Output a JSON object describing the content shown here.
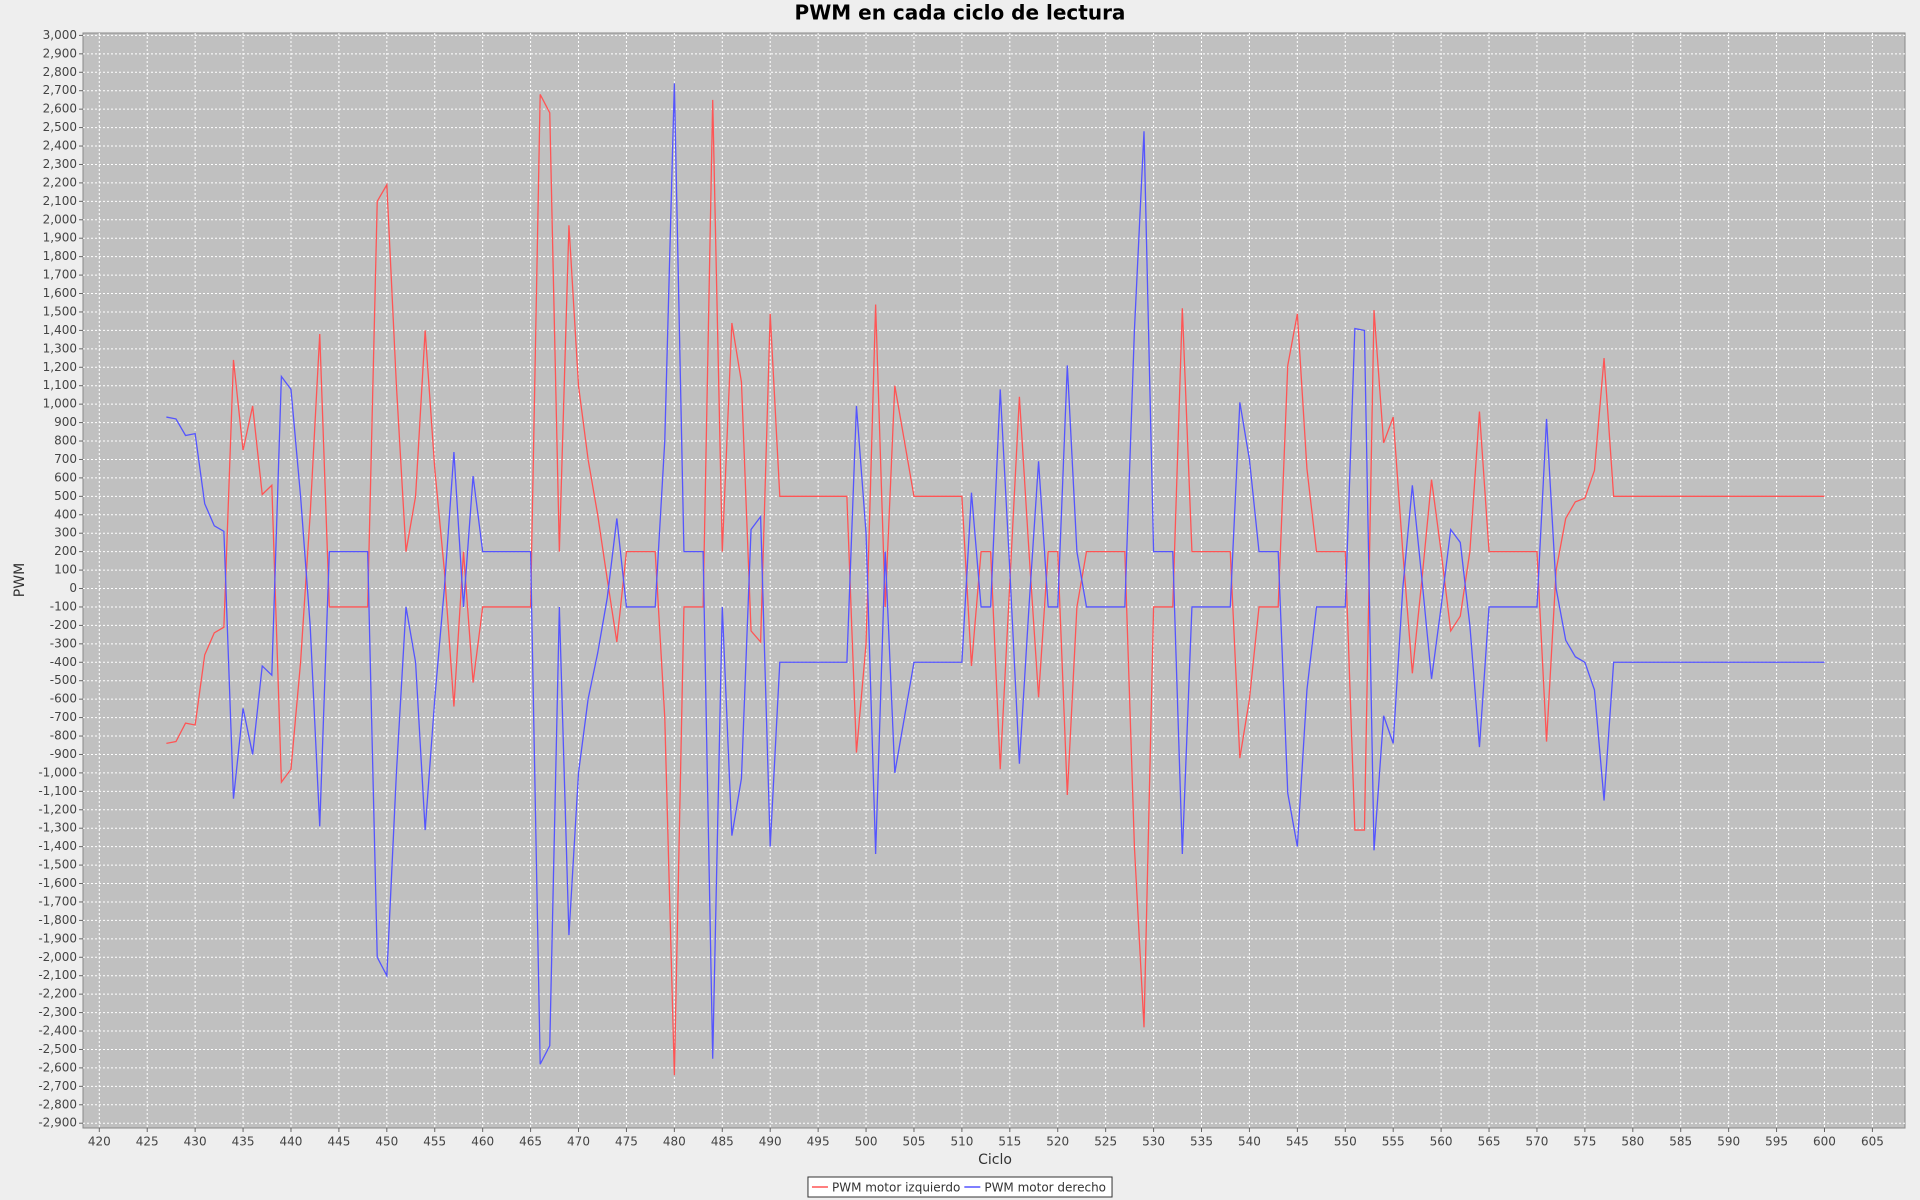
{
  "chart_data": {
    "type": "line",
    "title": "PWM en cada ciclo de lectura",
    "x_label": "Ciclo",
    "y_label": "PWM",
    "x": [
      427,
      428,
      429,
      430,
      431,
      432,
      433,
      434,
      435,
      436,
      437,
      438,
      439,
      440,
      441,
      442,
      443,
      444,
      445,
      446,
      447,
      448,
      449,
      450,
      451,
      452,
      453,
      454,
      455,
      456,
      457,
      458,
      459,
      460,
      461,
      462,
      463,
      464,
      465,
      466,
      467,
      468,
      469,
      470,
      471,
      472,
      473,
      474,
      475,
      476,
      477,
      478,
      479,
      480,
      481,
      482,
      483,
      484,
      485,
      486,
      487,
      488,
      489,
      490,
      491,
      492,
      493,
      494,
      495,
      496,
      497,
      498,
      499,
      500,
      501,
      502,
      503,
      504,
      505,
      506,
      507,
      508,
      509,
      510,
      511,
      512,
      513,
      514,
      515,
      516,
      517,
      518,
      519,
      520,
      521,
      522,
      523,
      524,
      525,
      526,
      527,
      528,
      529,
      530,
      531,
      532,
      533,
      534,
      535,
      536,
      537,
      538,
      539,
      540,
      541,
      542,
      543,
      544,
      545,
      546,
      547,
      548,
      549,
      550,
      551,
      552,
      553,
      554,
      555,
      556,
      557,
      558,
      559,
      560,
      561,
      562,
      563,
      564,
      565,
      566,
      567,
      568,
      569,
      570,
      571,
      572,
      573,
      574,
      575,
      576,
      577,
      578,
      579,
      580,
      581,
      582,
      583,
      584,
      585,
      586,
      587,
      588,
      589,
      590,
      591,
      592,
      593,
      594,
      595,
      596,
      597,
      598,
      599,
      600
    ],
    "series": [
      {
        "name": "PWM motor izquierdo",
        "color": "#ff5555",
        "values": [
          -840,
          -830,
          -730,
          -740,
          -360,
          -240,
          -210,
          1240,
          750,
          990,
          510,
          560,
          -1050,
          -980,
          -400,
          400,
          1380,
          -100,
          -100,
          -100,
          -100,
          -100,
          2100,
          2190,
          1100,
          200,
          500,
          1400,
          650,
          100,
          -640,
          200,
          -510,
          -100,
          -100,
          -100,
          -100,
          -100,
          -100,
          2680,
          2580,
          200,
          1970,
          1100,
          700,
          400,
          50,
          -290,
          200,
          200,
          200,
          200,
          -700,
          -2640,
          -100,
          -100,
          -100,
          2650,
          200,
          1440,
          1120,
          -230,
          -290,
          1490,
          500,
          500,
          500,
          500,
          500,
          500,
          500,
          500,
          -890,
          -300,
          1540,
          -100,
          1100,
          800,
          500,
          500,
          500,
          500,
          500,
          500,
          -420,
          200,
          200,
          -980,
          30,
          1040,
          200,
          -590,
          200,
          200,
          -1120,
          -100,
          200,
          200,
          200,
          200,
          200,
          -1400,
          -2380,
          -100,
          -100,
          -100,
          1520,
          200,
          200,
          200,
          200,
          200,
          -920,
          -600,
          -100,
          -100,
          -100,
          1210,
          1490,
          650,
          200,
          200,
          200,
          200,
          -1310,
          -1310,
          1510,
          790,
          930,
          200,
          -460,
          50,
          590,
          200,
          -230,
          -150,
          200,
          960,
          200,
          200,
          200,
          200,
          200,
          200,
          -830,
          100,
          380,
          470,
          490,
          640,
          1250,
          500,
          500,
          500,
          500,
          500,
          500,
          500,
          500,
          500,
          500,
          500,
          500,
          500,
          500,
          500,
          500,
          500,
          500,
          500,
          500,
          500,
          500,
          500
        ]
      },
      {
        "name": "PWM motor derecho",
        "color": "#5555ff",
        "values": [
          930,
          920,
          830,
          840,
          460,
          340,
          310,
          -1140,
          -650,
          -900,
          -420,
          -470,
          1150,
          1080,
          500,
          -200,
          -1290,
          200,
          200,
          200,
          200,
          200,
          -2000,
          -2100,
          -1000,
          -100,
          -400,
          -1310,
          -600,
          0,
          740,
          -100,
          610,
          200,
          200,
          200,
          200,
          200,
          200,
          -2580,
          -2480,
          -100,
          -1880,
          -1000,
          -600,
          -350,
          -50,
          380,
          -100,
          -100,
          -100,
          -100,
          800,
          2740,
          200,
          200,
          200,
          -2550,
          -100,
          -1340,
          -1030,
          320,
          390,
          -1400,
          -400,
          -400,
          -400,
          -400,
          -400,
          -400,
          -400,
          -400,
          990,
          300,
          -1440,
          200,
          -1000,
          -700,
          -400,
          -400,
          -400,
          -400,
          -400,
          -400,
          520,
          -100,
          -100,
          1080,
          100,
          -950,
          -100,
          690,
          -100,
          -100,
          1210,
          200,
          -100,
          -100,
          -100,
          -100,
          -100,
          1400,
          2480,
          200,
          200,
          200,
          -1440,
          -100,
          -100,
          -100,
          -100,
          -100,
          1010,
          700,
          200,
          200,
          200,
          -1110,
          -1400,
          -550,
          -100,
          -100,
          -100,
          -100,
          1410,
          1400,
          -1420,
          -690,
          -840,
          0,
          560,
          50,
          -490,
          -100,
          320,
          250,
          -200,
          -860,
          -100,
          -100,
          -100,
          -100,
          -100,
          -100,
          920,
          0,
          -280,
          -370,
          -400,
          -550,
          -1150,
          -400,
          -400,
          -400,
          -400,
          -400,
          -400,
          -400,
          -400,
          -400,
          -400,
          -400,
          -400,
          -400,
          -400,
          -400,
          -400,
          -400,
          -400,
          -400,
          -400,
          -400,
          -400,
          -400
        ]
      }
    ],
    "xlim": [
      418.3,
      608.4
    ],
    "ylim": [
      -2926,
      3013
    ],
    "xticks": [
      420,
      425,
      430,
      435,
      440,
      445,
      450,
      455,
      460,
      465,
      470,
      475,
      480,
      485,
      490,
      495,
      500,
      505,
      510,
      515,
      520,
      525,
      530,
      535,
      540,
      545,
      550,
      555,
      560,
      565,
      570,
      575,
      580,
      585,
      590,
      595,
      600,
      605
    ],
    "yticks": [
      {
        "value": -2900,
        "label": "-2,900"
      },
      {
        "value": -2800,
        "label": "-2,800"
      },
      {
        "value": -2700,
        "label": "-2,700"
      },
      {
        "value": -2600,
        "label": "-2,600"
      },
      {
        "value": -2500,
        "label": "-2,500"
      },
      {
        "value": -2400,
        "label": "-2,400"
      },
      {
        "value": -2300,
        "label": "-2,300"
      },
      {
        "value": -2200,
        "label": "-2,200"
      },
      {
        "value": -2100,
        "label": "-2,100"
      },
      {
        "value": -2000,
        "label": "-2,000"
      },
      {
        "value": -1900,
        "label": "-1,900"
      },
      {
        "value": -1800,
        "label": "-1,800"
      },
      {
        "value": -1700,
        "label": "-1,700"
      },
      {
        "value": -1600,
        "label": "-1,600"
      },
      {
        "value": -1500,
        "label": "-1,500"
      },
      {
        "value": -1400,
        "label": "-1,400"
      },
      {
        "value": -1300,
        "label": "-1,300"
      },
      {
        "value": -1200,
        "label": "-1,200"
      },
      {
        "value": -1100,
        "label": "-1,100"
      },
      {
        "value": -1000,
        "label": "-1,000"
      },
      -900,
      -800,
      -700,
      -600,
      -500,
      -400,
      -300,
      -200,
      -100,
      0,
      100,
      200,
      300,
      400,
      500,
      600,
      700,
      800,
      900,
      {
        "value": 1000,
        "label": "1,000"
      },
      {
        "value": 1100,
        "label": "1,100"
      },
      {
        "value": 1200,
        "label": "1,200"
      },
      {
        "value": 1300,
        "label": "1,300"
      },
      {
        "value": 1400,
        "label": "1,400"
      },
      {
        "value": 1500,
        "label": "1,500"
      },
      {
        "value": 1600,
        "label": "1,600"
      },
      {
        "value": 1700,
        "label": "1,700"
      },
      {
        "value": 1800,
        "label": "1,800"
      },
      {
        "value": 1900,
        "label": "1,900"
      },
      {
        "value": 2000,
        "label": "2,000"
      },
      {
        "value": 2100,
        "label": "2,100"
      },
      {
        "value": 2200,
        "label": "2,200"
      },
      {
        "value": 2300,
        "label": "2,300"
      },
      {
        "value": 2400,
        "label": "2,400"
      },
      {
        "value": 2500,
        "label": "2,500"
      },
      {
        "value": 2600,
        "label": "2,600"
      },
      {
        "value": 2700,
        "label": "2,700"
      },
      {
        "value": 2800,
        "label": "2,800"
      },
      {
        "value": 2900,
        "label": "2,900"
      },
      {
        "value": 3000,
        "label": "3,000"
      }
    ],
    "grid": true,
    "legend": "bottom"
  }
}
